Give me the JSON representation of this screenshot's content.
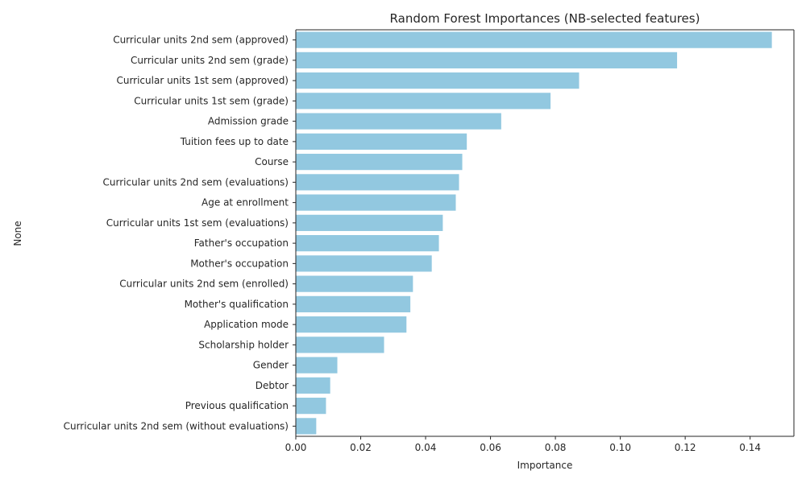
{
  "chart_data": {
    "type": "bar",
    "orientation": "horizontal",
    "title": "Random Forest Importances (NB-selected features)",
    "xlabel": "Importance",
    "ylabel": "None",
    "xlim": [
      0,
      0.1535
    ],
    "xticks": [
      0.0,
      0.02,
      0.04,
      0.06,
      0.08,
      0.1,
      0.12,
      0.14
    ],
    "xtick_labels": [
      "0.00",
      "0.02",
      "0.04",
      "0.06",
      "0.08",
      "0.10",
      "0.12",
      "0.14"
    ],
    "bar_color": "#92c8e0",
    "grid": false,
    "categories": [
      "Curricular units 2nd sem (approved)",
      "Curricular units 2nd sem (grade)",
      "Curricular units 1st sem (approved)",
      "Curricular units 1st sem (grade)",
      "Admission grade",
      "Tuition fees up to date",
      "Course",
      "Curricular units 2nd sem (evaluations)",
      "Age at enrollment",
      "Curricular units 1st sem (evaluations)",
      "Father's occupation",
      "Mother's occupation",
      "Curricular units 2nd sem (enrolled)",
      "Mother's qualification",
      "Application mode",
      "Scholarship holder",
      "Gender",
      "Debtor",
      "Previous qualification",
      "Curricular units 2nd sem (without evaluations)"
    ],
    "values": [
      0.1467,
      0.1175,
      0.0873,
      0.0785,
      0.0633,
      0.0527,
      0.0513,
      0.0503,
      0.0493,
      0.0453,
      0.0441,
      0.0419,
      0.0361,
      0.0353,
      0.0341,
      0.0272,
      0.0128,
      0.0106,
      0.0093,
      0.0063
    ]
  }
}
